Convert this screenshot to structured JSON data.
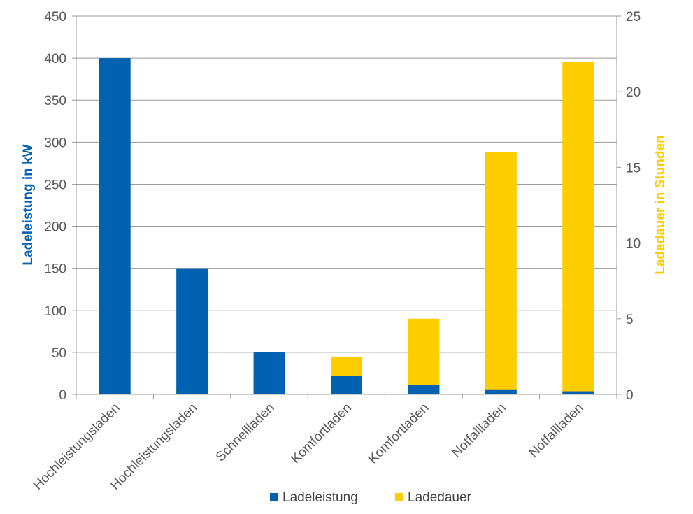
{
  "chart_data": {
    "type": "bar",
    "stacked": "overlapping",
    "categories": [
      "Hochleistungsladen",
      "Hochleistungsladen",
      "Schnellladen",
      "Komfortladen",
      "Komfortladen",
      "Notfallladen",
      "Notfallladen"
    ],
    "series": [
      {
        "name": "Ladeleistung",
        "axis": "left",
        "color": "#0062B1",
        "values": [
          400,
          150,
          50,
          22,
          11,
          6,
          3.7
        ]
      },
      {
        "name": "Ladedauer",
        "axis": "right",
        "color": "#FFCC00",
        "values": [
          0.2,
          0.5,
          1.2,
          2.5,
          5,
          16,
          22
        ]
      }
    ],
    "ylabel": "Ladeleistung in kW",
    "y2label": "Ladedauer in Stunden",
    "ylim": [
      0,
      450
    ],
    "y2lim": [
      0,
      25
    ],
    "yticks": [
      0,
      50,
      100,
      150,
      200,
      250,
      300,
      350,
      400,
      450
    ],
    "y2ticks": [
      0,
      5,
      10,
      15,
      20,
      25
    ],
    "grid": true,
    "legend_position": "bottom"
  }
}
